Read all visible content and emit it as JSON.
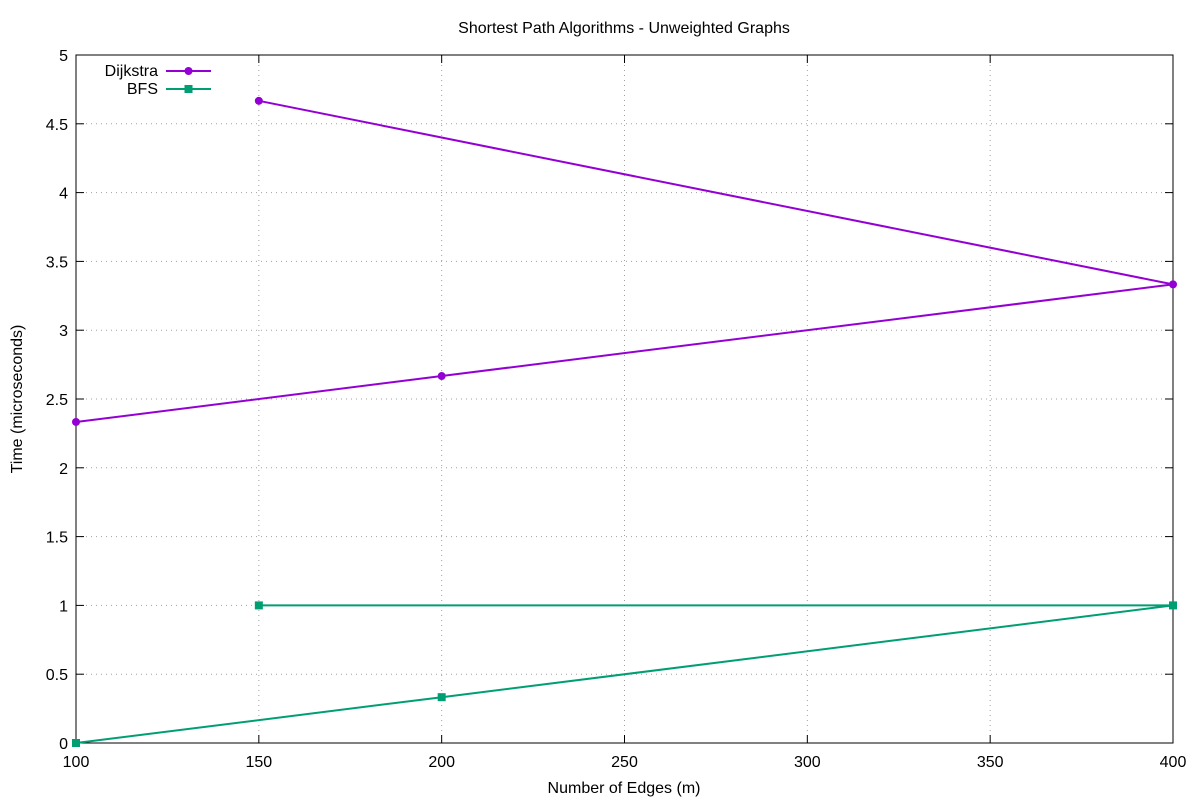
{
  "chart_data": {
    "type": "line",
    "title": "Shortest Path Algorithms - Unweighted Graphs",
    "xlabel": "Number of Edges (m)",
    "ylabel": "Time (microseconds)",
    "xlim": [
      100,
      400
    ],
    "ylim": [
      0,
      5
    ],
    "x_ticks": [
      "100",
      "150",
      "200",
      "250",
      "300",
      "350",
      "400"
    ],
    "x_tick_values": [
      100,
      150,
      200,
      250,
      300,
      350,
      400
    ],
    "y_ticks": [
      "0",
      "0.5",
      "1",
      "1.5",
      "2",
      "2.5",
      "3",
      "3.5",
      "4",
      "4.5",
      "5"
    ],
    "y_tick_values": [
      0,
      0.5,
      1,
      1.5,
      2,
      2.5,
      3,
      3.5,
      4,
      4.5,
      5
    ],
    "grid": true,
    "legend_position": "top-left",
    "series": [
      {
        "name": "Dijkstra",
        "color": "#9400d3",
        "marker": "circle",
        "points": [
          {
            "x": 100,
            "y": 2.333
          },
          {
            "x": 200,
            "y": 2.667
          },
          {
            "x": 400,
            "y": 3.333
          },
          {
            "x": 150,
            "y": 4.667
          }
        ]
      },
      {
        "name": "BFS",
        "color": "#009e73",
        "marker": "square",
        "points": [
          {
            "x": 100,
            "y": 0
          },
          {
            "x": 200,
            "y": 0.333
          },
          {
            "x": 400,
            "y": 1
          },
          {
            "x": 150,
            "y": 1
          }
        ]
      }
    ]
  }
}
